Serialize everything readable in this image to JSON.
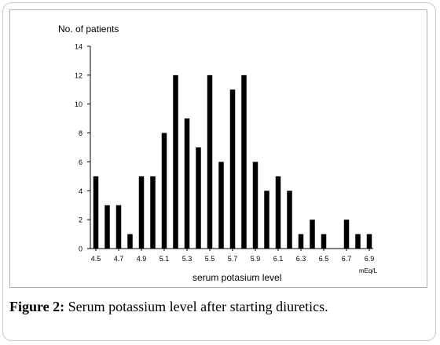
{
  "chart_data": {
    "type": "bar",
    "xlabel": "serum potasium level",
    "ylabel": "No. of patients",
    "x_unit": "mEq/L",
    "ylim": [
      0,
      14
    ],
    "y_ticks": [
      "0",
      "2",
      "4",
      "6",
      "8",
      "10",
      "12",
      "14"
    ],
    "x_tick_labels": [
      "4.5",
      "4.7",
      "4.9",
      "5.1",
      "5.3",
      "5.5",
      "5.7",
      "5.9",
      "6.1",
      "6.3",
      "6.5",
      "6.7",
      "6.9"
    ],
    "x": [
      4.5,
      4.6,
      4.7,
      4.8,
      4.9,
      5.0,
      5.1,
      5.2,
      5.3,
      5.4,
      5.5,
      5.6,
      5.7,
      5.8,
      5.9,
      6.0,
      6.1,
      6.2,
      6.3,
      6.4,
      6.5,
      6.6,
      6.7,
      6.8,
      6.9
    ],
    "values": [
      5,
      3,
      3,
      1,
      5,
      5,
      8,
      12,
      9,
      7,
      12,
      6,
      11,
      12,
      6,
      4,
      5,
      4,
      1,
      2,
      1,
      0,
      2,
      1,
      1
    ],
    "grid": false,
    "bar_color": "#000000"
  },
  "caption": {
    "label": "Figure 2:",
    "text": " Serum potassium level after starting diuretics."
  }
}
